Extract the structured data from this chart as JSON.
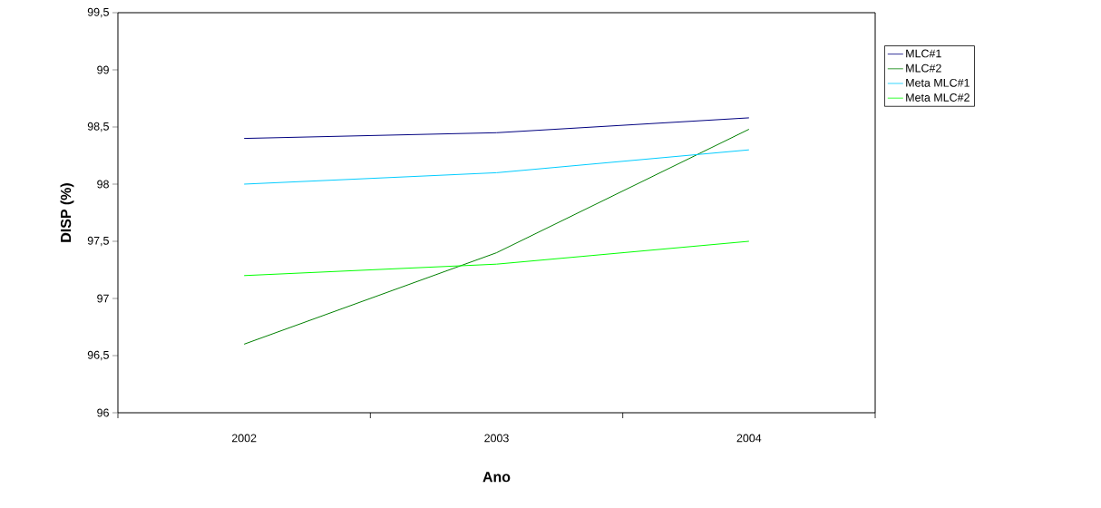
{
  "chart_data": {
    "type": "line",
    "xlabel": "Ano",
    "ylabel": "DISP (%)",
    "categories": [
      "2002",
      "2003",
      "2004"
    ],
    "series": [
      {
        "name": "MLC#1",
        "color": "#000080",
        "values": [
          98.4,
          98.45,
          98.58
        ]
      },
      {
        "name": "MLC#2",
        "color": "#008000",
        "values": [
          96.6,
          97.4,
          98.48
        ]
      },
      {
        "name": "Meta  MLC#1",
        "color": "#00ccff",
        "values": [
          98.0,
          98.1,
          98.3
        ]
      },
      {
        "name": "Meta MLC#2",
        "color": "#00ff00",
        "values": [
          97.2,
          97.3,
          97.5
        ]
      }
    ],
    "ylim": [
      96,
      99.5
    ],
    "yticks": [
      96,
      {
        "value": 96.5,
        "label": "96,5"
      },
      97,
      {
        "value": 97.5,
        "label": "97,5"
      },
      98,
      {
        "value": 98.5,
        "label": "98,5"
      },
      99,
      {
        "value": 99.5,
        "label": "99,5"
      }
    ],
    "grid": false,
    "legend": "right",
    "marker": "none",
    "line_style": "solid"
  }
}
